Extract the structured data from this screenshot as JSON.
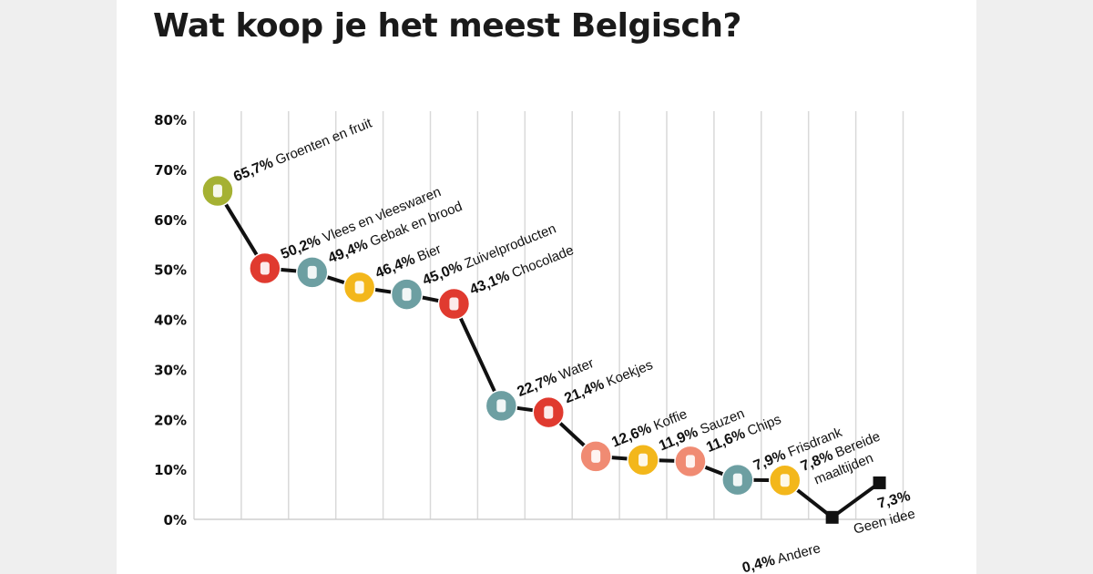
{
  "title": "Wat koop je het meest Belgisch?",
  "colors": {
    "green": "#a5b133",
    "red": "#e03a2f",
    "teal": "#6d9fa2",
    "yellow": "#f3b71b",
    "salmon": "#f08b73",
    "black": "#111111"
  },
  "chart_data": {
    "type": "line",
    "title": "Wat koop je het meest Belgisch?",
    "ylim": [
      0,
      80
    ],
    "yticks": [
      "0%",
      "10%",
      "20%",
      "30%",
      "40%",
      "50%",
      "60%",
      "70%",
      "80%"
    ],
    "grid": "vertical",
    "legend": "none",
    "points": [
      {
        "category": "Groenten en fruit",
        "value": 65.7,
        "label": "65,7%",
        "color": "green",
        "icon": "vegetables-icon"
      },
      {
        "category": "Vlees en vleeswaren",
        "value": 50.2,
        "label": "50,2%",
        "color": "red",
        "icon": "meat-icon"
      },
      {
        "category": "Gebak en brood",
        "value": 49.4,
        "label": "49,4%",
        "color": "teal",
        "icon": "bread-icon"
      },
      {
        "category": "Bier",
        "value": 46.4,
        "label": "46,4%",
        "color": "yellow",
        "icon": "beer-icon"
      },
      {
        "category": "Zuivelproducten",
        "value": 45.0,
        "label": "45,0%",
        "color": "teal",
        "icon": "milk-icon"
      },
      {
        "category": "Chocolade",
        "value": 43.1,
        "label": "43,1%",
        "color": "red",
        "icon": "chocolate-icon"
      },
      {
        "category": "Water",
        "value": 22.7,
        "label": "22,7%",
        "color": "teal",
        "icon": "water-bottle-icon"
      },
      {
        "category": "Koekjes",
        "value": 21.4,
        "label": "21,4%",
        "color": "red",
        "icon": "cookie-icon"
      },
      {
        "category": "Koffie",
        "value": 12.6,
        "label": "12,6%",
        "color": "salmon",
        "icon": "coffee-bean-icon"
      },
      {
        "category": "Sauzen",
        "value": 11.9,
        "label": "11,9%",
        "color": "yellow",
        "icon": "sauce-boat-icon"
      },
      {
        "category": "Chips",
        "value": 11.6,
        "label": "11,6%",
        "color": "salmon",
        "icon": "chips-icon"
      },
      {
        "category": "Frisdrank",
        "value": 7.9,
        "label": "7,9%",
        "color": "teal",
        "icon": "soda-icon"
      },
      {
        "category": "Bereide maaltijden",
        "value": 7.8,
        "label": "7,8%",
        "color": "yellow",
        "icon": "ready-meal-icon"
      },
      {
        "category": "Andere",
        "value": 0.4,
        "label": "0,4%",
        "color": "black",
        "icon": "square-marker"
      },
      {
        "category": "Geen idee",
        "value": 7.3,
        "label": "7,3%",
        "color": "black",
        "icon": "square-marker"
      }
    ]
  }
}
